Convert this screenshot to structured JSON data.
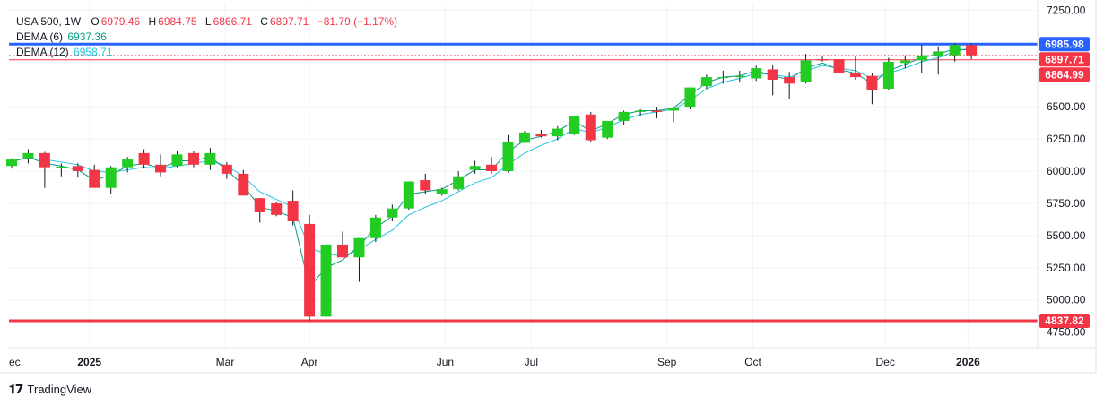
{
  "header": {
    "symbol": "USA 500",
    "interval": "1W",
    "o_label": "O",
    "o_value": "6979.46",
    "h_label": "H",
    "h_value": "6984.75",
    "l_label": "L",
    "l_value": "6866.71",
    "c_label": "C",
    "c_value": "6897.71",
    "change": "−81.79 (−1.17%)"
  },
  "indicators": [
    {
      "label": "DEMA (6)",
      "value": "6937.36",
      "color": "#089981"
    },
    {
      "label": "DEMA (12)",
      "value": "6958.71",
      "color": "#22c4dd"
    }
  ],
  "brand": {
    "name": "TradingView"
  },
  "colors": {
    "up": "#22cc22",
    "down": "#f23645",
    "grid": "#f0f3fa",
    "text": "#131722"
  },
  "chart_data": {
    "type": "candlestick",
    "ylim": [
      4700,
      7300
    ],
    "y_ticks": [
      4750,
      5000,
      5250,
      5500,
      5750,
      6000,
      6250,
      6500,
      7250
    ],
    "y_tick_labels": [
      "4750.00",
      "5000.00",
      "5250.00",
      "5500.00",
      "5750.00",
      "6000.00",
      "6250.00",
      "6500.00",
      "7250.00"
    ],
    "x_labels": [
      {
        "label": "ec",
        "index": -0.3
      },
      {
        "label": "2025",
        "index": 4.7,
        "bold": true
      },
      {
        "label": "Mar",
        "index": 12.9
      },
      {
        "label": "Apr",
        "index": 18.0
      },
      {
        "label": "Jun",
        "index": 26.2
      },
      {
        "label": "Jul",
        "index": 31.4
      },
      {
        "label": "Sep",
        "index": 39.6
      },
      {
        "label": "Oct",
        "index": 44.8
      },
      {
        "label": "Dec",
        "index": 52.8
      },
      {
        "label": "2026",
        "index": 57.8,
        "bold": true
      }
    ],
    "candles": [
      [
        6040,
        6100,
        6020,
        6090
      ],
      [
        6100,
        6170,
        6060,
        6140
      ],
      [
        6140,
        6150,
        5870,
        6030
      ],
      [
        6030,
        6060,
        5960,
        6035
      ],
      [
        6040,
        6060,
        5950,
        6000
      ],
      [
        6010,
        6050,
        5870,
        5870
      ],
      [
        5870,
        6040,
        5820,
        6030
      ],
      [
        6030,
        6110,
        5990,
        6090
      ],
      [
        6140,
        6170,
        6020,
        6050
      ],
      [
        6050,
        6130,
        5960,
        5990
      ],
      [
        6040,
        6160,
        6030,
        6130
      ],
      [
        6140,
        6160,
        6030,
        6050
      ],
      [
        6050,
        6180,
        6010,
        6140
      ],
      [
        6050,
        6070,
        5940,
        5980
      ],
      [
        5980,
        6010,
        5810,
        5810
      ],
      [
        5790,
        5790,
        5600,
        5680
      ],
      [
        5750,
        5760,
        5650,
        5660
      ],
      [
        5770,
        5850,
        5580,
        5610
      ],
      [
        5590,
        5660,
        4840,
        4870
      ],
      [
        4870,
        5470,
        4830,
        5430
      ],
      [
        5430,
        5530,
        5350,
        5330
      ],
      [
        5330,
        5480,
        5140,
        5480
      ],
      [
        5480,
        5660,
        5450,
        5640
      ],
      [
        5640,
        5740,
        5610,
        5710
      ],
      [
        5710,
        5920,
        5700,
        5920
      ],
      [
        5930,
        5980,
        5820,
        5850
      ],
      [
        5820,
        5870,
        5810,
        5860
      ],
      [
        5860,
        6000,
        5850,
        5960
      ],
      [
        6010,
        6080,
        5980,
        6040
      ],
      [
        6050,
        6110,
        5980,
        6000
      ],
      [
        6000,
        6280,
        5990,
        6230
      ],
      [
        6220,
        6310,
        6220,
        6300
      ],
      [
        6290,
        6320,
        6260,
        6270
      ],
      [
        6270,
        6350,
        6240,
        6330
      ],
      [
        6290,
        6430,
        6280,
        6430
      ],
      [
        6440,
        6460,
        6230,
        6240
      ],
      [
        6260,
        6390,
        6250,
        6390
      ],
      [
        6390,
        6470,
        6360,
        6460
      ],
      [
        6460,
        6480,
        6430,
        6470
      ],
      [
        6470,
        6500,
        6410,
        6460
      ],
      [
        6470,
        6500,
        6380,
        6490
      ],
      [
        6500,
        6650,
        6480,
        6650
      ],
      [
        6660,
        6750,
        6640,
        6730
      ],
      [
        6730,
        6780,
        6680,
        6730
      ],
      [
        6730,
        6780,
        6690,
        6740
      ],
      [
        6720,
        6820,
        6700,
        6800
      ],
      [
        6790,
        6820,
        6590,
        6710
      ],
      [
        6730,
        6770,
        6560,
        6680
      ],
      [
        6690,
        6910,
        6680,
        6860
      ],
      [
        6870,
        6890,
        6850,
        6860
      ],
      [
        6870,
        6900,
        6660,
        6760
      ],
      [
        6760,
        6890,
        6710,
        6730
      ],
      [
        6740,
        6760,
        6520,
        6630
      ],
      [
        6640,
        6880,
        6630,
        6850
      ],
      [
        6840,
        6900,
        6800,
        6860
      ],
      [
        6860,
        6980,
        6760,
        6900
      ],
      [
        6890,
        6970,
        6750,
        6930
      ],
      [
        6900,
        6990,
        6850,
        6980
      ],
      [
        6980,
        6990,
        6870,
        6900
      ]
    ],
    "dema_6": [
      6070,
      6110,
      6060,
      6040,
      6010,
      5930,
      5970,
      6040,
      6060,
      6020,
      6080,
      6080,
      6110,
      6010,
      5890,
      5720,
      5690,
      5640,
      5100,
      5250,
      5310,
      5420,
      5560,
      5650,
      5820,
      5840,
      5860,
      5930,
      6010,
      6010,
      6150,
      6240,
      6270,
      6310,
      6390,
      6310,
      6370,
      6440,
      6470,
      6470,
      6490,
      6590,
      6690,
      6730,
      6740,
      6780,
      6740,
      6710,
      6800,
      6840,
      6790,
      6760,
      6680,
      6780,
      6830,
      6880,
      6910,
      6950,
      6937
    ],
    "dema_12": [
      6080,
      6100,
      6090,
      6070,
      6050,
      6000,
      5990,
      6010,
      6030,
      6020,
      6040,
      6060,
      6080,
      6040,
      5960,
      5840,
      5780,
      5720,
      5400,
      5360,
      5340,
      5390,
      5470,
      5540,
      5660,
      5720,
      5770,
      5840,
      5910,
      5950,
      6050,
      6140,
      6200,
      6250,
      6330,
      6300,
      6340,
      6400,
      6440,
      6460,
      6480,
      6550,
      6640,
      6690,
      6720,
      6760,
      6750,
      6730,
      6780,
      6820,
      6800,
      6780,
      6720,
      6760,
      6800,
      6850,
      6880,
      6930,
      6958
    ],
    "h_lines": [
      {
        "value": 6985.98,
        "label": "6985.98",
        "color": "#2962ff",
        "style": "solid",
        "width": 3,
        "tag_bg": "#2962ff"
      },
      {
        "value": 6897.71,
        "label": "6897.71",
        "color": "#f23645",
        "style": "dotted",
        "width": 1,
        "tag_bg": "#f23645"
      },
      {
        "value": 6864.99,
        "label": "6864.99",
        "color": "#f23645",
        "style": "solid",
        "width": 1,
        "tag_bg": "#f23645"
      },
      {
        "value": 4837.82,
        "label": "4837.82",
        "color": "#f23645",
        "style": "solid",
        "width": 3,
        "tag_bg": "#f23645"
      }
    ]
  }
}
